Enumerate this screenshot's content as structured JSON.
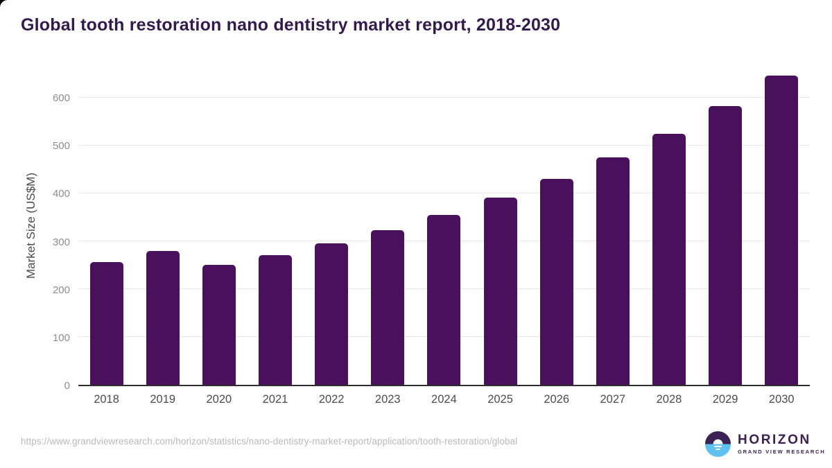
{
  "page": {
    "title": "Global tooth restoration nano dentistry market report, 2018-2030",
    "source_url": "https://www.grandviewresearch.com/horizon/statistics/nano-dentistry-market-report/application/tooth-restoration/global"
  },
  "branding": {
    "logo_icon": "horizon-sun-icon",
    "name": "HORIZON",
    "tagline": "GRAND VIEW RESEARCH"
  },
  "colors": {
    "title": "#331a4e",
    "bar": "#49115c",
    "grid": "#e8e8e8",
    "axis": "#2e2e2e",
    "y_tick_label": "#8d8d8d",
    "x_tick_label": "#4c4c4c",
    "source_text": "#b9b9b9",
    "logo_purple": "#3b2154",
    "logo_blue": "#5ec1ef"
  },
  "chart_data": {
    "type": "bar",
    "title": "Global tooth restoration nano dentistry market report, 2018-2030",
    "categories": [
      "2018",
      "2019",
      "2020",
      "2021",
      "2022",
      "2023",
      "2024",
      "2025",
      "2026",
      "2027",
      "2028",
      "2029",
      "2030"
    ],
    "values": [
      256,
      279,
      250,
      271,
      295,
      323,
      354,
      390,
      430,
      474,
      523,
      581,
      645
    ],
    "xlabel": "",
    "ylabel": "Market Size (US$M)",
    "ylim": [
      0,
      668
    ],
    "yticks": [
      0,
      100,
      200,
      300,
      400,
      500,
      600
    ],
    "grid": true,
    "legend": "none",
    "bar_color": "#49115c"
  }
}
